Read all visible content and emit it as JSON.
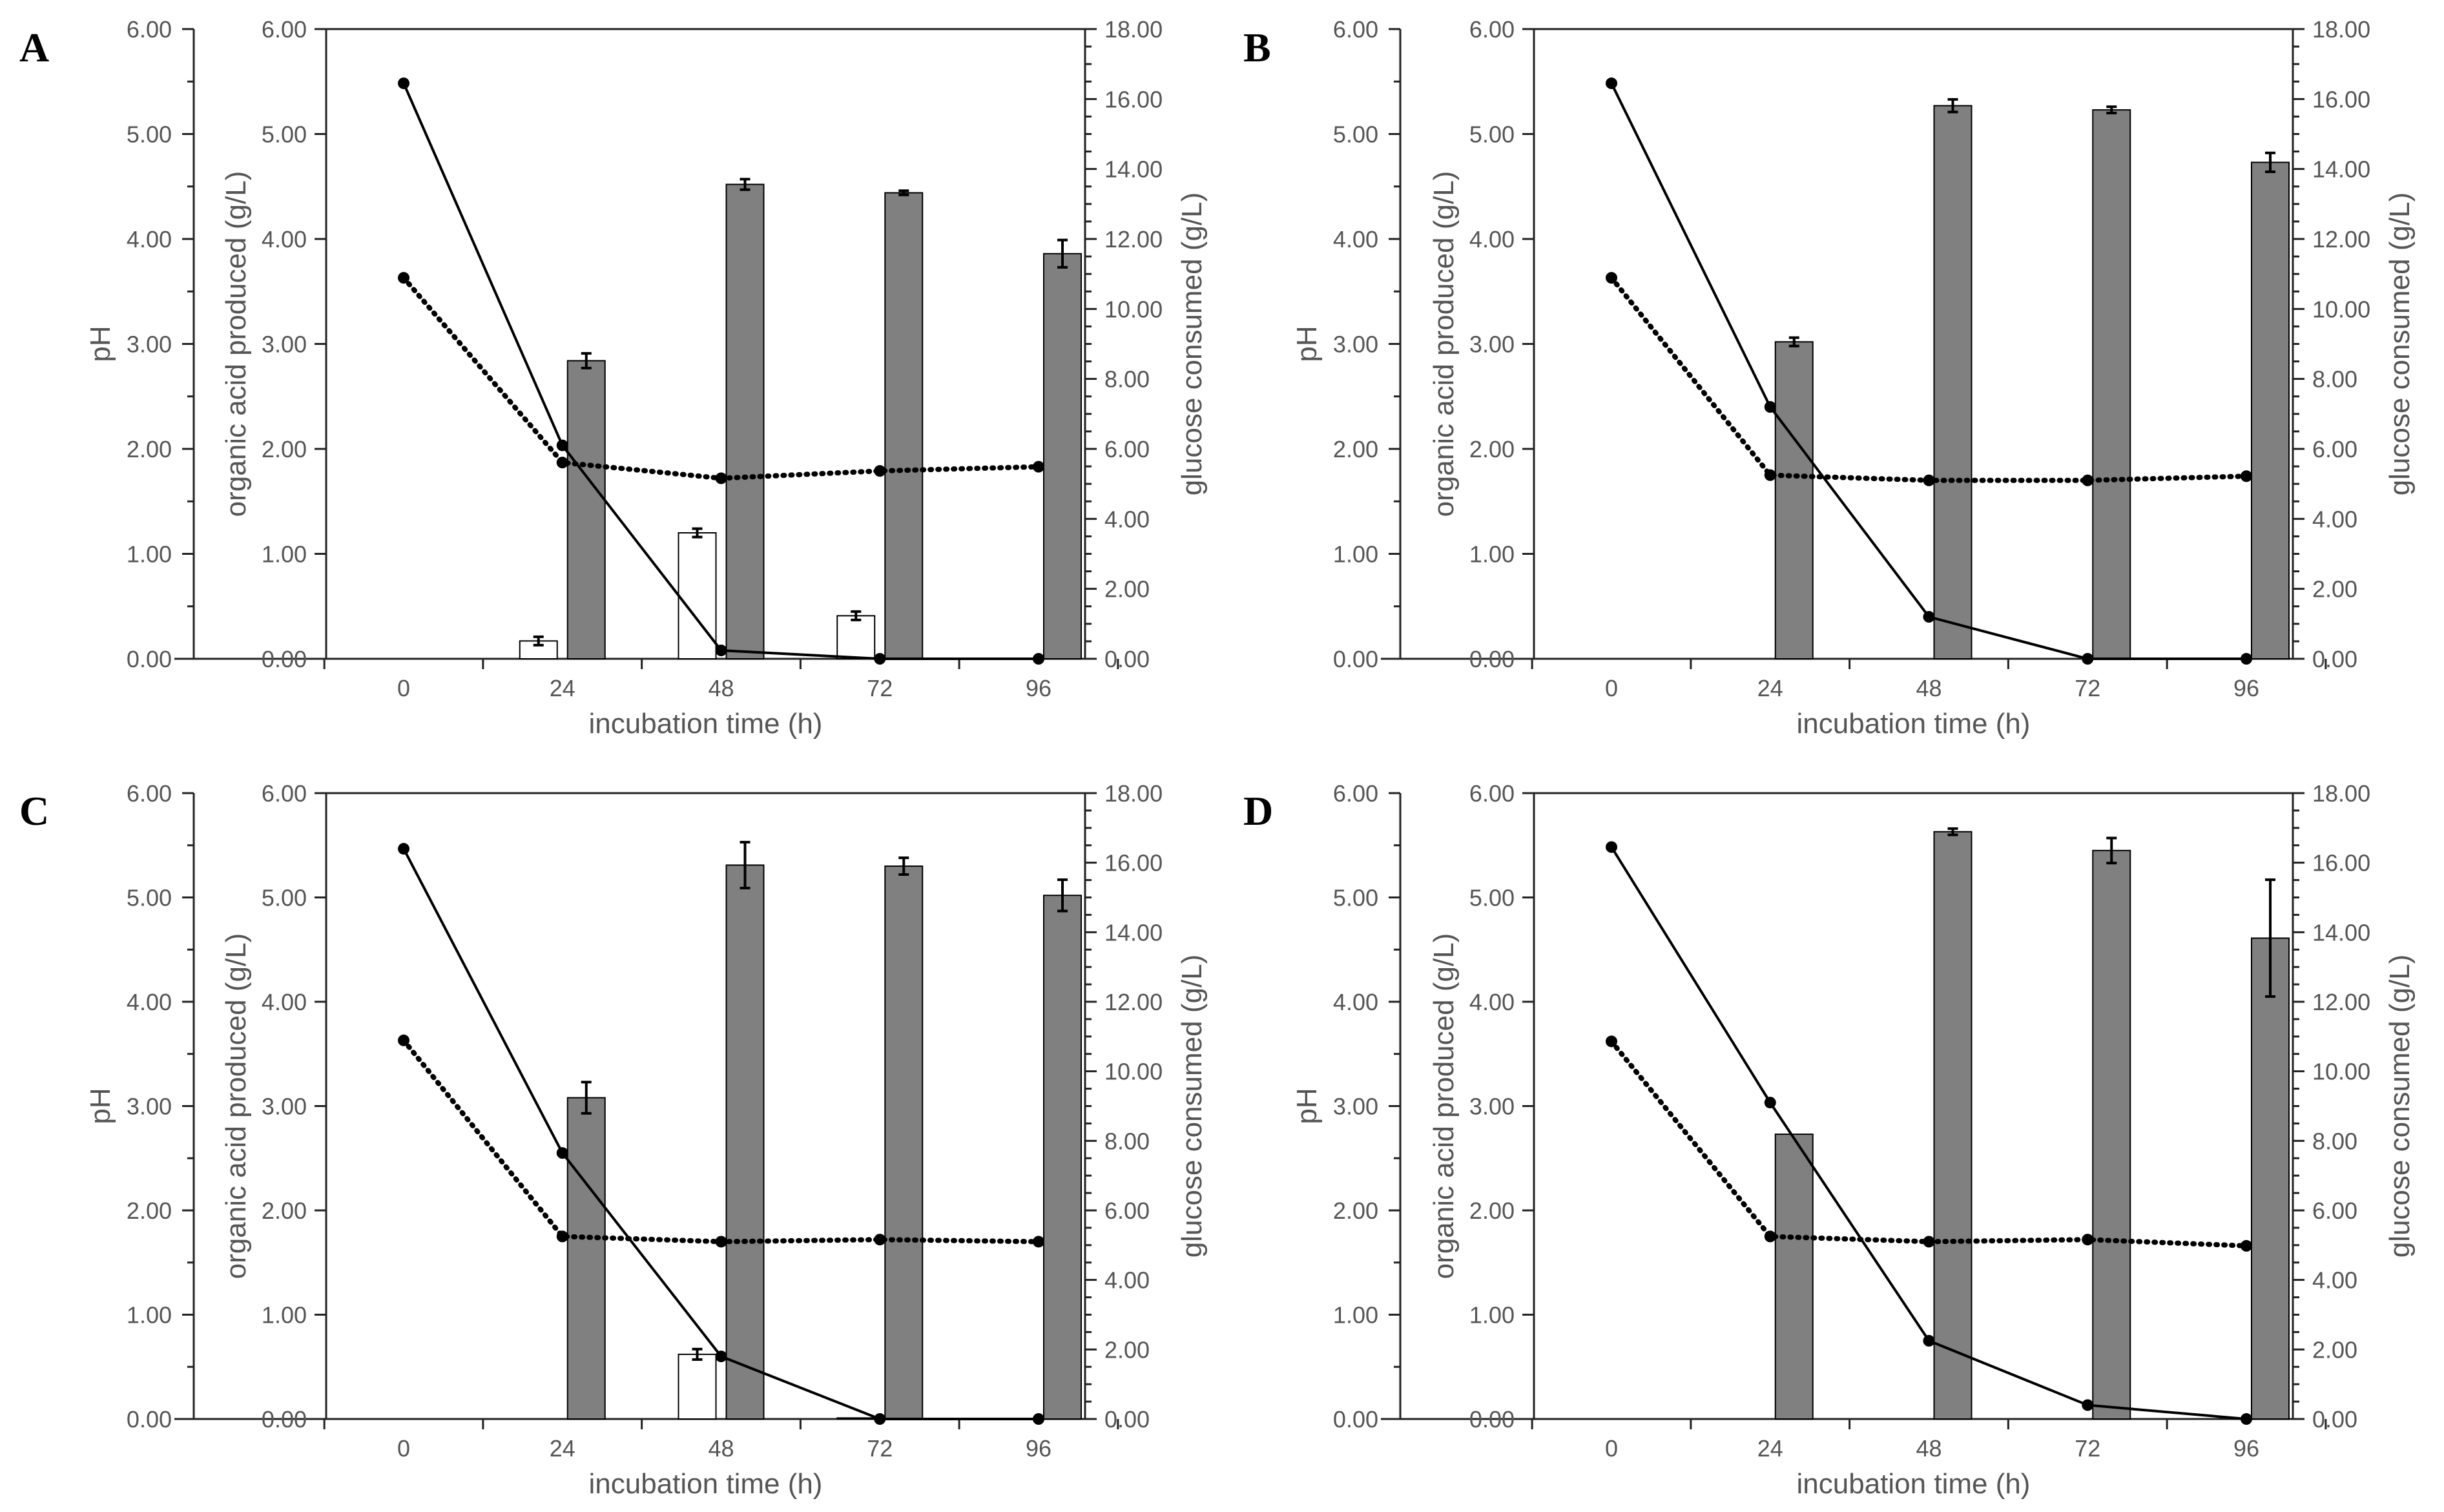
{
  "figure": {
    "xlabel": "incubation time (h)",
    "ylabel_ph": "pH",
    "ylabel_acid": "organic acid produced (g/L)",
    "ylabel_glucose": "glucose consumed (g/L)",
    "ph_ticks": [
      "0.00",
      "1.00",
      "2.00",
      "3.00",
      "4.00",
      "5.00",
      "6.00"
    ],
    "acid_ticks": [
      "0.00",
      "1.00",
      "2.00",
      "3.00",
      "4.00",
      "5.00",
      "6.00"
    ],
    "glucose_ticks": [
      "0.00",
      "2.00",
      "4.00",
      "6.00",
      "8.00",
      "10.00",
      "12.00",
      "14.00",
      "16.00",
      "18.00"
    ],
    "time_ticks": [
      "0",
      "24",
      "48",
      "72",
      "96"
    ]
  },
  "colors": {
    "bar_grey": "#808080",
    "bar_white": "#ffffff",
    "line": "#000000"
  },
  "chart_data": [
    {
      "type": "bar",
      "panel": "A",
      "xlabel": "incubation time (h)",
      "ylabel": "organic acid produced (g/L)",
      "categories": [
        "0",
        "24",
        "48",
        "72",
        "96"
      ],
      "ylim": [
        0,
        6
      ],
      "ylim_ph": [
        0,
        6
      ],
      "ylim_glucose": [
        0,
        18
      ],
      "series": [
        {
          "name": "organic acid (white)",
          "axis": "acid",
          "kind": "bar",
          "values": [
            0.0,
            0.17,
            1.2,
            0.41,
            0.0
          ],
          "errors": [
            0,
            0.04,
            0.04,
            0.04,
            0
          ]
        },
        {
          "name": "organic acid (grey)",
          "axis": "acid",
          "kind": "bar",
          "values": [
            0.0,
            2.84,
            4.52,
            4.44,
            3.86
          ],
          "errors": [
            0,
            0.07,
            0.05,
            0.02,
            0.13
          ]
        },
        {
          "name": "pH",
          "axis": "ph",
          "kind": "line-dotted",
          "values": [
            3.63,
            1.87,
            1.72,
            1.79,
            1.83
          ]
        },
        {
          "name": "glucose consumed",
          "axis": "glucose",
          "kind": "line-solid",
          "values": [
            16.45,
            6.1,
            0.24,
            0.0,
            0.0
          ]
        }
      ]
    },
    {
      "type": "bar",
      "panel": "B",
      "xlabel": "incubation time (h)",
      "ylabel": "organic acid produced (g/L)",
      "categories": [
        "0",
        "24",
        "48",
        "72",
        "96"
      ],
      "ylim": [
        0,
        6
      ],
      "ylim_ph": [
        0,
        6
      ],
      "ylim_glucose": [
        0,
        18
      ],
      "series": [
        {
          "name": "organic acid (white)",
          "axis": "acid",
          "kind": "bar",
          "values": [
            0.0,
            0.0,
            0.0,
            0.0,
            0.0
          ],
          "errors": [
            0,
            0,
            0,
            0,
            0
          ]
        },
        {
          "name": "organic acid (grey)",
          "axis": "acid",
          "kind": "bar",
          "values": [
            0.0,
            3.02,
            5.27,
            5.23,
            4.73
          ],
          "errors": [
            0,
            0.04,
            0.06,
            0.03,
            0.09
          ]
        },
        {
          "name": "pH",
          "axis": "ph",
          "kind": "line-dotted",
          "values": [
            3.63,
            1.75,
            1.7,
            1.7,
            1.74
          ]
        },
        {
          "name": "glucose consumed",
          "axis": "glucose",
          "kind": "line-solid",
          "values": [
            16.45,
            7.2,
            1.2,
            0.0,
            0.0
          ]
        }
      ]
    },
    {
      "type": "bar",
      "panel": "C",
      "xlabel": "incubation time (h)",
      "ylabel": "organic acid produced (g/L)",
      "categories": [
        "0",
        "24",
        "48",
        "72",
        "96"
      ],
      "ylim": [
        0,
        6
      ],
      "ylim_ph": [
        0,
        6
      ],
      "ylim_glucose": [
        0,
        18
      ],
      "series": [
        {
          "name": "organic acid (white)",
          "axis": "acid",
          "kind": "bar",
          "values": [
            0.0,
            0.0,
            0.62,
            0.01,
            0.0
          ],
          "errors": [
            0,
            0,
            0.05,
            0,
            0
          ]
        },
        {
          "name": "organic acid (grey)",
          "axis": "acid",
          "kind": "bar",
          "values": [
            0.0,
            3.08,
            5.31,
            5.3,
            5.02
          ],
          "errors": [
            0,
            0.15,
            0.22,
            0.08,
            0.15
          ]
        },
        {
          "name": "pH",
          "axis": "ph",
          "kind": "line-dotted",
          "values": [
            3.63,
            1.75,
            1.7,
            1.72,
            1.7
          ]
        },
        {
          "name": "glucose consumed",
          "axis": "glucose",
          "kind": "line-solid",
          "values": [
            16.4,
            7.65,
            1.8,
            0.0,
            0.0
          ]
        }
      ]
    },
    {
      "type": "bar",
      "panel": "D",
      "xlabel": "incubation time (h)",
      "ylabel": "organic acid produced (g/L)",
      "categories": [
        "0",
        "24",
        "48",
        "72",
        "96"
      ],
      "ylim": [
        0,
        6
      ],
      "ylim_ph": [
        0,
        6
      ],
      "ylim_glucose": [
        0,
        18
      ],
      "series": [
        {
          "name": "organic acid (white)",
          "axis": "acid",
          "kind": "bar",
          "values": [
            0.0,
            0.0,
            0.0,
            0.0,
            0.0
          ],
          "errors": [
            0,
            0,
            0,
            0,
            0
          ]
        },
        {
          "name": "organic acid (grey)",
          "axis": "acid",
          "kind": "bar",
          "values": [
            0.0,
            2.73,
            5.63,
            5.45,
            4.61
          ],
          "errors": [
            0,
            0,
            0.03,
            0.12,
            0.56
          ]
        },
        {
          "name": "pH",
          "axis": "ph",
          "kind": "line-dotted",
          "values": [
            3.62,
            1.75,
            1.7,
            1.72,
            1.66
          ]
        },
        {
          "name": "glucose consumed",
          "axis": "glucose",
          "kind": "line-solid",
          "values": [
            16.45,
            9.1,
            2.25,
            0.4,
            0.0
          ]
        }
      ]
    }
  ]
}
